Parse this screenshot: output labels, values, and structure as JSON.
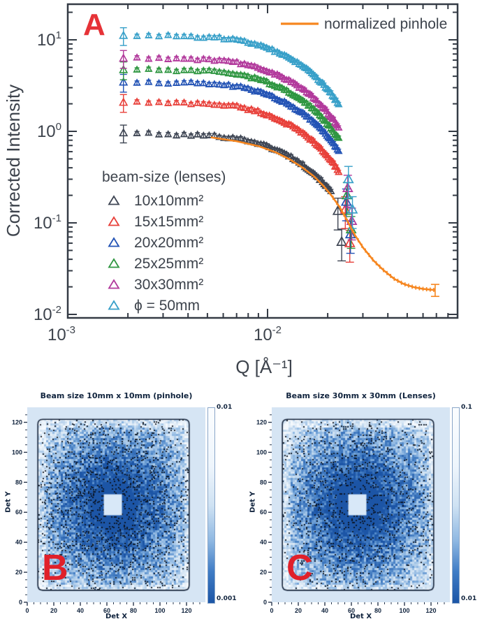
{
  "figure": {
    "panel_a_label": "A",
    "panel_b_label": "B",
    "panel_c_label": "C"
  },
  "chart_data": [
    {
      "panel": "A",
      "type": "scatter",
      "xscale": "log",
      "yscale": "log",
      "xlabel": "Q [Å⁻¹]",
      "ylabel": "Corrected Intensity",
      "xlim": [
        0.001,
        0.0893
      ],
      "ylim": [
        0.01,
        24.5
      ],
      "x_major_tick_exponents": [
        -3,
        -2
      ],
      "x_tick_labels": [
        "10⁻³",
        "10⁻²"
      ],
      "y_major_tick_exponents": [
        1,
        0,
        -1,
        -2
      ],
      "y_tick_labels": [
        "10¹",
        "10⁰",
        "10⁻¹",
        "10⁻²"
      ],
      "legend": {
        "line_label": "normalized pinhole",
        "title": "beam-size (lenses)"
      },
      "series": [
        {
          "name": "10x10mm²",
          "color": "#3f4654",
          "anchors": [
            [
              0.0019,
              0.97
            ],
            [
              0.003,
              0.92
            ],
            [
              0.005,
              0.9
            ],
            [
              0.007,
              0.84
            ],
            [
              0.009,
              0.74
            ],
            [
              0.011,
              0.63
            ],
            [
              0.013,
              0.53
            ],
            [
              0.015,
              0.43
            ],
            [
              0.017,
              0.35
            ],
            [
              0.019,
              0.275
            ],
            [
              0.021,
              0.214
            ]
          ],
          "cliff": [
            [
              0.0225,
              0.135
            ],
            [
              0.0235,
              0.062
            ]
          ]
        },
        {
          "name": "15x15mm²",
          "color": "#e8403a",
          "anchors": [
            [
              0.0019,
              2.09
            ],
            [
              0.003,
              2.05
            ],
            [
              0.005,
              2.0
            ],
            [
              0.007,
              1.87
            ],
            [
              0.009,
              1.64
            ],
            [
              0.011,
              1.38
            ],
            [
              0.013,
              1.16
            ],
            [
              0.015,
              0.95
            ],
            [
              0.017,
              0.77
            ],
            [
              0.019,
              0.6
            ],
            [
              0.021,
              0.47
            ],
            [
              0.023,
              0.35
            ]
          ],
          "cliff": [
            [
              0.0245,
              0.14
            ],
            [
              0.0258,
              0.06
            ]
          ]
        },
        {
          "name": "20x20mm²",
          "color": "#2353b5",
          "anchors": [
            [
              0.0019,
              3.47
            ],
            [
              0.003,
              3.4
            ],
            [
              0.005,
              3.32
            ],
            [
              0.007,
              3.09
            ],
            [
              0.009,
              2.72
            ],
            [
              0.011,
              2.3
            ],
            [
              0.013,
              1.92
            ],
            [
              0.015,
              1.58
            ],
            [
              0.017,
              1.28
            ],
            [
              0.019,
              1.0
            ],
            [
              0.021,
              0.78
            ],
            [
              0.023,
              0.585
            ]
          ],
          "cliff": [
            [
              0.0248,
              0.17
            ],
            [
              0.026,
              0.075
            ]
          ]
        },
        {
          "name": "25x25mm²",
          "color": "#2f9641",
          "anchors": [
            [
              0.0019,
              4.74
            ],
            [
              0.003,
              4.65
            ],
            [
              0.005,
              4.53
            ],
            [
              0.007,
              4.23
            ],
            [
              0.009,
              3.72
            ],
            [
              0.011,
              3.14
            ],
            [
              0.013,
              2.63
            ],
            [
              0.015,
              2.16
            ],
            [
              0.017,
              1.74
            ],
            [
              0.019,
              1.37
            ],
            [
              0.021,
              1.06
            ],
            [
              0.023,
              0.8
            ]
          ],
          "cliff": [
            [
              0.025,
              0.2
            ],
            [
              0.0262,
              0.085
            ]
          ]
        },
        {
          "name": "30x30mm²",
          "color": "#b23a9c",
          "anchors": [
            [
              0.0019,
              6.32
            ],
            [
              0.003,
              6.2
            ],
            [
              0.005,
              6.05
            ],
            [
              0.007,
              5.64
            ],
            [
              0.009,
              4.96
            ],
            [
              0.011,
              4.19
            ],
            [
              0.013,
              3.5
            ],
            [
              0.015,
              2.88
            ],
            [
              0.017,
              2.33
            ],
            [
              0.019,
              1.83
            ],
            [
              0.021,
              1.41
            ],
            [
              0.023,
              1.07
            ]
          ],
          "cliff": [
            [
              0.0252,
              0.24
            ],
            [
              0.0264,
              0.105
            ]
          ]
        },
        {
          "name": "ϕ = 50mm",
          "color": "#38a0c9",
          "anchors": [
            [
              0.0019,
              11.2
            ],
            [
              0.003,
              11.0
            ],
            [
              0.005,
              10.7
            ],
            [
              0.007,
              10.0
            ],
            [
              0.009,
              8.8
            ],
            [
              0.011,
              7.43
            ],
            [
              0.013,
              6.22
            ],
            [
              0.015,
              5.12
            ],
            [
              0.017,
              4.13
            ],
            [
              0.019,
              3.25
            ],
            [
              0.021,
              2.51
            ],
            [
              0.023,
              1.89
            ]
          ],
          "cliff": [
            [
              0.0254,
              0.3
            ],
            [
              0.0266,
              0.14
            ]
          ]
        }
      ],
      "pinhole_line": {
        "name": "normalized pinhole",
        "color": "#f6861f",
        "anchors": [
          [
            0.0052,
            0.86
          ],
          [
            0.007,
            0.78
          ],
          [
            0.009,
            0.69
          ],
          [
            0.011,
            0.59
          ],
          [
            0.013,
            0.49
          ],
          [
            0.015,
            0.4
          ],
          [
            0.017,
            0.325
          ],
          [
            0.019,
            0.255
          ],
          [
            0.021,
            0.196
          ],
          [
            0.023,
            0.148
          ],
          [
            0.025,
            0.107
          ],
          [
            0.027,
            0.077
          ],
          [
            0.03,
            0.054
          ],
          [
            0.034,
            0.0385
          ],
          [
            0.038,
            0.0305
          ],
          [
            0.043,
            0.0245
          ],
          [
            0.048,
            0.0215
          ],
          [
            0.054,
            0.0198
          ],
          [
            0.06,
            0.019
          ],
          [
            0.066,
            0.0186
          ],
          [
            0.069,
            0.0185
          ]
        ]
      }
    },
    {
      "panel": "B",
      "type": "heatmap",
      "title": "Beam size 10mm x 10mm (pinhole)",
      "xlabel": "Det X",
      "ylabel": "Det Y",
      "label": "B",
      "xticks": [
        0,
        20,
        40,
        60,
        80,
        100,
        120
      ],
      "yticks": [
        0,
        20,
        40,
        60,
        80,
        100,
        120
      ],
      "detector_extent": [
        0,
        130
      ],
      "active_area": [
        8,
        122
      ],
      "beamstop_center": [
        64.5,
        65
      ],
      "colorbar": {
        "top_label": "0.01",
        "bottom_label": "0.001"
      },
      "noise_seed": 7,
      "speckle_base": 0.05,
      "speckle_gain": 0.3
    },
    {
      "panel": "C",
      "type": "heatmap",
      "title": "Beam size 30mm x 30mm (Lenses)",
      "xlabel": "Det X",
      "ylabel": "Det Y",
      "label": "C",
      "xticks": [
        0,
        20,
        40,
        60,
        80,
        100,
        120
      ],
      "yticks": [
        0,
        20,
        40,
        60,
        80,
        100,
        120
      ],
      "detector_extent": [
        0,
        130
      ],
      "active_area": [
        8,
        122
      ],
      "beamstop_center": [
        64.5,
        65
      ],
      "colorbar": {
        "top_label": "0.1",
        "bottom_label": "0.01"
      },
      "noise_seed": 13,
      "speckle_base": 0.04,
      "speckle_gain": 0.26
    }
  ]
}
